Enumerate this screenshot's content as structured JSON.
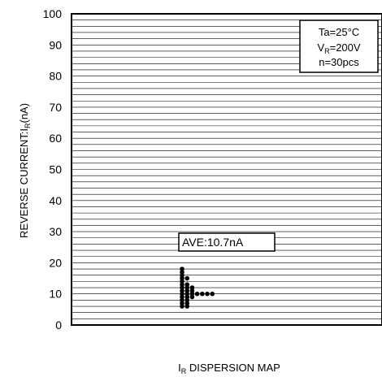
{
  "chart_data": {
    "type": "scatter",
    "title": "I_R DISPERSION MAP",
    "title_main": "I",
    "title_sub": "R",
    "title_rest": " DISPERSION MAP",
    "ylabel_main": "REVERSE CURRENT:I",
    "ylabel_sub": "R",
    "ylabel_rest": "(nA)",
    "ylim": [
      0,
      100
    ],
    "y_ticks": [
      0,
      10,
      20,
      30,
      40,
      50,
      60,
      70,
      80,
      90,
      100
    ],
    "grid": "horizontal, minor every 2 nA",
    "conditions": {
      "ta": "Ta=25°C",
      "vr_main": "V",
      "vr_sub": "R",
      "vr_rest": "=200V",
      "n": "n=30pcs"
    },
    "average_label": "AVE:10.7nA",
    "average": 10.7,
    "bins": [
      {
        "value": 18,
        "count": 1
      },
      {
        "value": 17,
        "count": 1
      },
      {
        "value": 16,
        "count": 1
      },
      {
        "value": 15,
        "count": 2
      },
      {
        "value": 14,
        "count": 1
      },
      {
        "value": 13,
        "count": 2
      },
      {
        "value": 12,
        "count": 3
      },
      {
        "value": 11,
        "count": 3
      },
      {
        "value": 10,
        "count": 7
      },
      {
        "value": 9,
        "count": 3
      },
      {
        "value": 8,
        "count": 2
      },
      {
        "value": 7,
        "count": 2
      },
      {
        "value": 6,
        "count": 2
      }
    ],
    "colors": {
      "marker": "#000000",
      "grid": "#000000",
      "background": "#ffffff"
    }
  }
}
